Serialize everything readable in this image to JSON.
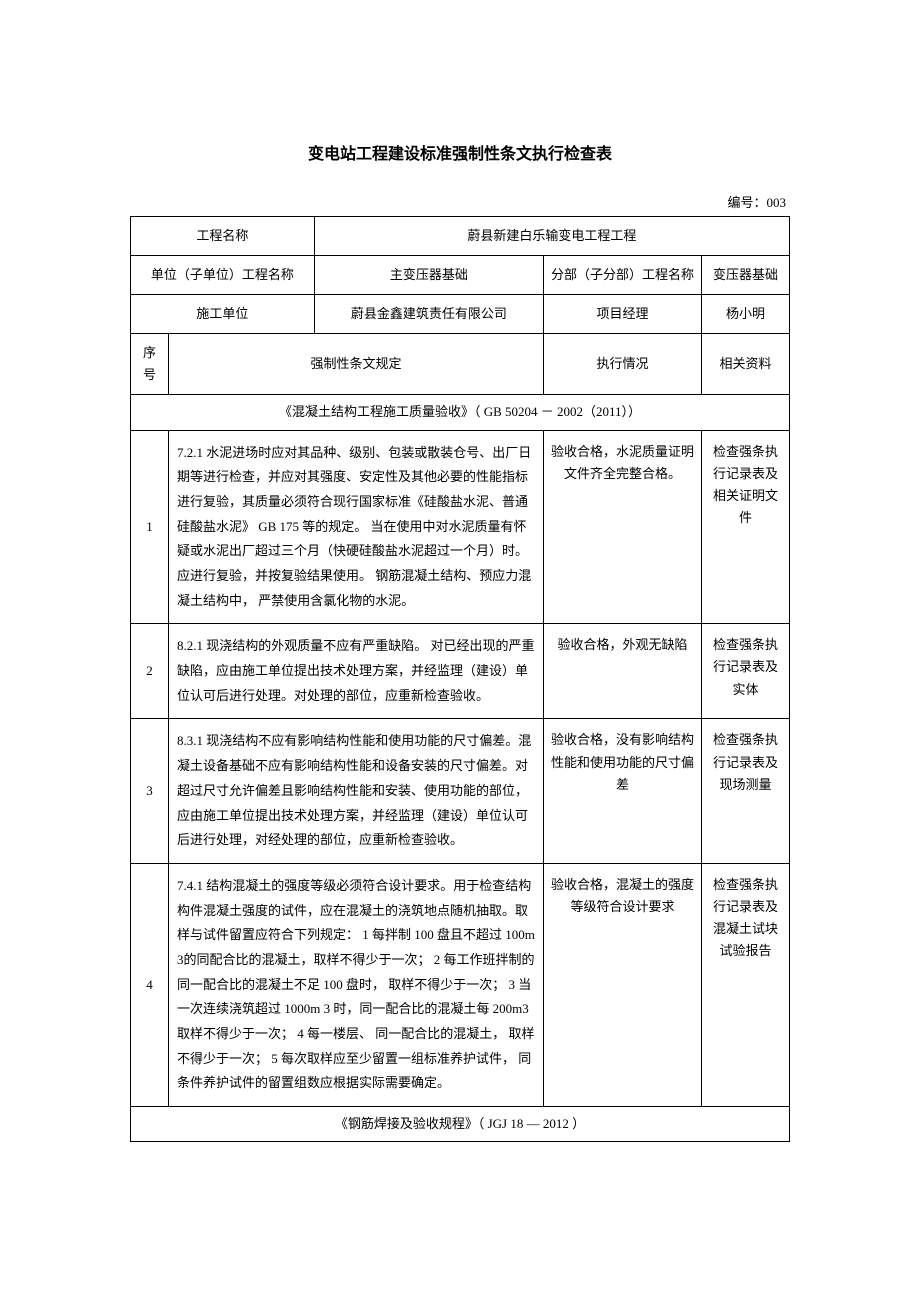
{
  "title": "变电站工程建设标准强制性条文执行检查表",
  "docNumber": "编号：003",
  "header": {
    "projectNameLabel": "工程名称",
    "projectNameValue": "蔚县新建白乐输变电工程工程",
    "unitProjectLabel": "单位（子单位）工程名称",
    "unitProjectValue": "主变压器基础",
    "subProjectLabel": "分部（子分部）工程名称",
    "subProjectValue": "变压器基础",
    "constructionUnitLabel": "施工单位",
    "constructionUnitValue": "蔚县金鑫建筑责任有限公司",
    "projectManagerLabel": "项目经理",
    "projectManagerValue": "杨小明",
    "seqLabel": "序号",
    "mandatoryLabel": "强制性条文规定",
    "executionLabel": "执行情况",
    "relatedDocsLabel": "相关资料"
  },
  "section1": {
    "title": "《混凝土结构工程施工质量验收》（ GB 50204 － 2002（2011））"
  },
  "rows": [
    {
      "seq": "1",
      "provision": "7.2.1 水泥进场时应对其品种、级别、包装或散装仓号、出厂日期等进行检查，并应对其强度、安定性及其他必要的性能指标进行复验，其质量必须符合现行国家标准《硅酸盐水泥、普通硅酸盐水泥》 GB 175 等的规定。 当在使用中对水泥质量有怀疑或水泥出厂超过三个月（快硬硅酸盐水泥超过一个月）时。应进行复验，并按复验结果使用。 钢筋混凝土结构、预应力混凝土结构中， 严禁使用含氯化物的水泥。",
      "execution": "验收合格，水泥质量证明文件齐全完整合格。",
      "reference": "检查强条执行记录表及相关证明文件"
    },
    {
      "seq": "2",
      "provision": "8.2.1 现浇结构的外观质量不应有严重缺陷。 对已经出现的严重缺陷，应由施工单位提出技术处理方案，并经监理（建设）单位认可后进行处理。对处理的部位，应重新检查验收。",
      "execution": "验收合格，外观无缺陷",
      "reference": "检查强条执行记录表及实体"
    },
    {
      "seq": "3",
      "provision": "8.3.1 现浇结构不应有影响结构性能和使用功能的尺寸偏差。混凝土设备基础不应有影响结构性能和设备安装的尺寸偏差。对超过尺寸允许偏差且影响结构性能和安装、使用功能的部位，应由施工单位提出技术处理方案，并经监理（建设）单位认可后进行处理，对经处理的部位，应重新检查验收。",
      "execution": "验收合格，没有影响结构性能和使用功能的尺寸偏差",
      "reference": "检查强条执行记录表及现场测量"
    },
    {
      "seq": "4",
      "provision": "7.4.1 结构混凝土的强度等级必须符合设计要求。用于检查结构构件混凝土强度的试件，应在混凝土的浇筑地点随机抽取。取样与试件留置应符合下列规定： 1 每拌制 100 盘且不超过 100m 3的同配合比的混凝土，取样不得少于一次； 2 每工作班拌制的同一配合比的混凝土不足 100 盘时， 取样不得少于一次； 3 当一次连续浇筑超过 1000m 3 时，同一配合比的混凝土每 200m3 取样不得少于一次； 4 每一楼层、 同一配合比的混凝土， 取样不得少于一次； 5 每次取样应至少留置一组标准养护试件， 同条件养护试件的留置组数应根据实际需要确定。",
      "execution": "验收合格，混凝土的强度等级符合设计要求",
      "reference": "检查强条执行记录表及混凝土试块试验报告"
    }
  ],
  "section2": {
    "title": "《钢筋焊接及验收规程》（ JGJ 18 — 2012 ）"
  }
}
